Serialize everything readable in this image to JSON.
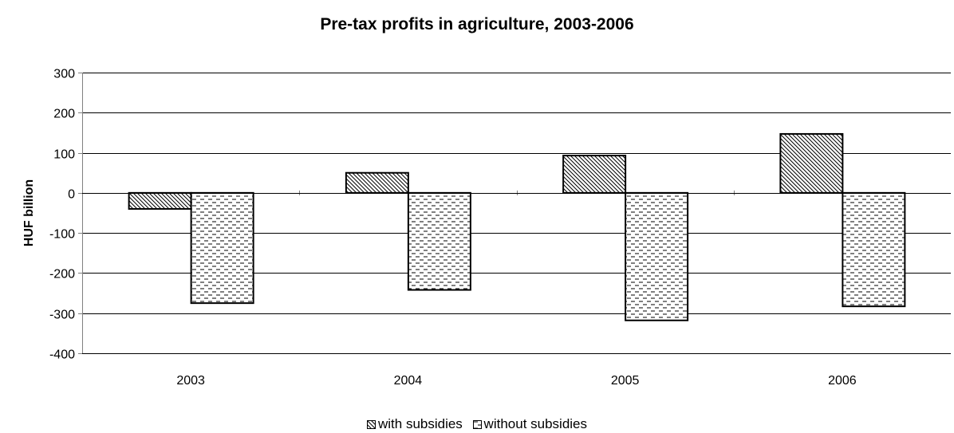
{
  "chart_data": {
    "type": "bar",
    "title": "Pre-tax profits in agriculture, 2003-2006",
    "xlabel": "",
    "ylabel": "HUF billion",
    "categories": [
      "2003",
      "2004",
      "2005",
      "2006"
    ],
    "ylim": [
      -400,
      300
    ],
    "yticks": [
      300,
      200,
      100,
      0,
      -100,
      -200,
      -300,
      -400
    ],
    "grid": true,
    "legend_position": "bottom",
    "series": [
      {
        "name": "with subsidies",
        "values": [
          -40,
          50,
          93,
          147
        ],
        "pattern": "diagonal-hatch"
      },
      {
        "name": "without subsidies",
        "values": [
          -275,
          -242,
          -318,
          -283
        ],
        "pattern": "dashed-horizontal"
      }
    ]
  },
  "colors": {
    "bar_edge": "#000000",
    "grid": "#000000",
    "background": "#ffffff",
    "axis": "#808080"
  }
}
